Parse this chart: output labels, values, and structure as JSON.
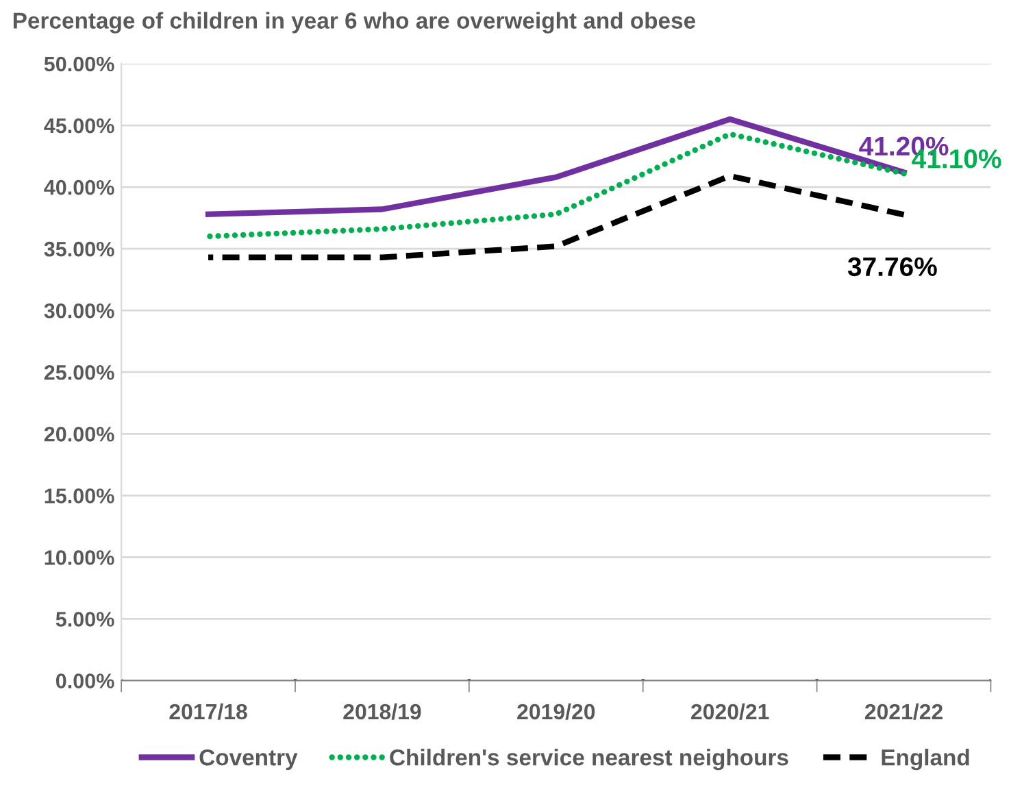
{
  "chart_data": {
    "type": "line",
    "title": "Percentage of children in year 6 who are overweight and obese",
    "categories": [
      "2017/18",
      "2018/19",
      "2019/20",
      "2020/21",
      "2021/22"
    ],
    "series": [
      {
        "name": "Coventry",
        "color": "#7030a0",
        "line_style": "solid",
        "values": [
          37.8,
          38.2,
          40.8,
          45.5,
          41.2
        ],
        "value_labels": [
          null,
          null,
          null,
          null,
          "41.20%"
        ]
      },
      {
        "name": "Children's service nearest neighours",
        "color": "#00b050",
        "line_style": "dotted",
        "values": [
          36.0,
          36.6,
          37.8,
          44.3,
          41.1
        ],
        "value_labels": [
          null,
          null,
          null,
          null,
          "41.10%"
        ]
      },
      {
        "name": "England",
        "color": "#000000",
        "line_style": "dashed",
        "values": [
          34.3,
          34.3,
          35.2,
          40.9,
          37.76
        ],
        "value_labels": [
          null,
          null,
          null,
          null,
          "37.76%"
        ]
      }
    ],
    "ylim": [
      0,
      50
    ],
    "yticks": [
      {
        "value": 0,
        "label": "0.00%"
      },
      {
        "value": 5,
        "label": "5.00%"
      },
      {
        "value": 10,
        "label": "10.00%"
      },
      {
        "value": 15,
        "label": "15.00%"
      },
      {
        "value": 20,
        "label": "20.00%"
      },
      {
        "value": 25,
        "label": "25.00%"
      },
      {
        "value": 30,
        "label": "30.00%"
      },
      {
        "value": 35,
        "label": "35.00%"
      },
      {
        "value": 40,
        "label": "40.00%"
      },
      {
        "value": 45,
        "label": "45.00%"
      },
      {
        "value": 50,
        "label": "50.00%"
      }
    ],
    "grid": "y",
    "legend": "bottom",
    "marker": "none"
  }
}
